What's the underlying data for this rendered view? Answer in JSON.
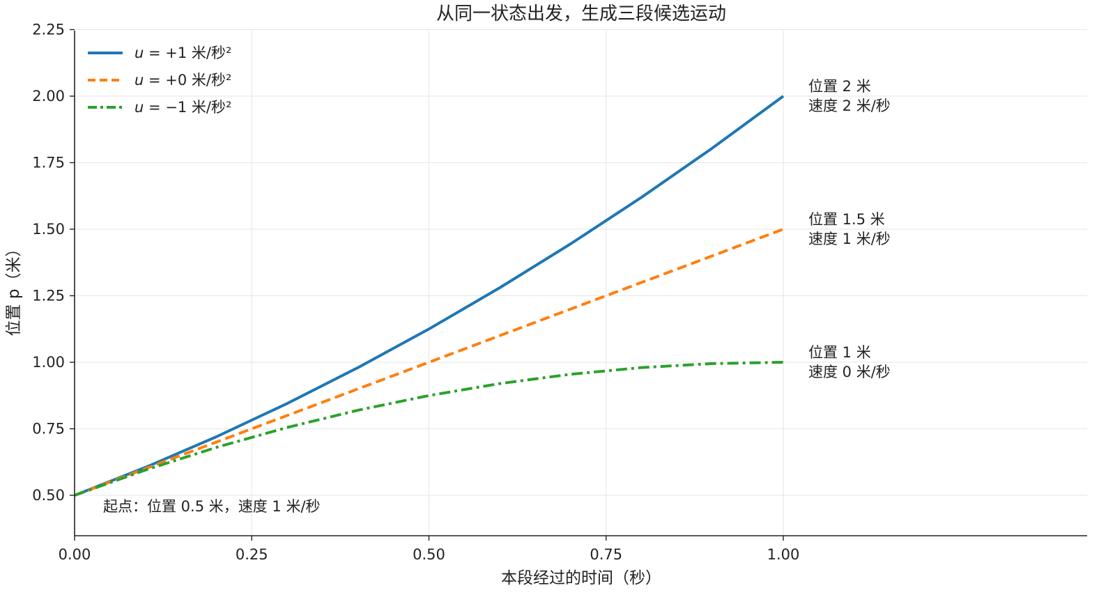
{
  "chart_data": {
    "type": "line",
    "title": "从同一状态出发，生成三段候选运动",
    "xlabel": "本段经过的时间（秒）",
    "ylabel": "位置 p（米）",
    "xlim": [
      0,
      1.43
    ],
    "ylim": [
      0.35,
      2.25
    ],
    "x_ticks": [
      "0.00",
      "0.25",
      "0.50",
      "0.75",
      "1.00"
    ],
    "x_tick_values": [
      0,
      0.25,
      0.5,
      0.75,
      1.0
    ],
    "y_ticks": [
      "0.50",
      "0.75",
      "1.00",
      "1.25",
      "1.50",
      "1.75",
      "2.00",
      "2.25"
    ],
    "y_tick_values": [
      0.5,
      0.75,
      1.0,
      1.25,
      1.5,
      1.75,
      2.0,
      2.25
    ],
    "grid": true,
    "legend_position": "top-left",
    "x": [
      0,
      0.1,
      0.2,
      0.3,
      0.4,
      0.5,
      0.6,
      0.7,
      0.8,
      0.9,
      1.0
    ],
    "series": [
      {
        "legend_symbol": "u",
        "legend_rest": " = +1 米/秒²",
        "color": "#1f77b4",
        "style": "solid",
        "values": [
          0.5,
          0.605,
          0.72,
          0.845,
          0.98,
          1.125,
          1.28,
          1.445,
          1.62,
          1.805,
          2.0
        ]
      },
      {
        "legend_symbol": "u",
        "legend_rest": " = +0 米/秒²",
        "color": "#ff7f0e",
        "style": "dashed",
        "values": [
          0.5,
          0.6,
          0.7,
          0.8,
          0.9,
          1.0,
          1.1,
          1.2,
          1.3,
          1.4,
          1.5
        ]
      },
      {
        "legend_symbol": "u",
        "legend_rest": " = −1 米/秒²",
        "color": "#2ca02c",
        "style": "dashdot",
        "values": [
          0.5,
          0.595,
          0.68,
          0.755,
          0.82,
          0.875,
          0.92,
          0.955,
          0.98,
          0.995,
          1.0
        ]
      }
    ],
    "end_annotations": [
      {
        "y": 2.0,
        "line1": "位置 2 米",
        "line2": "速度 2 米/秒"
      },
      {
        "y": 1.5,
        "line1": "位置 1.5 米",
        "line2": "速度 1 米/秒"
      },
      {
        "y": 1.0,
        "line1": "位置 1 米",
        "line2": "速度 0 米/秒"
      }
    ],
    "start_annotation": "起点：位置 0.5 米，速度 1 米/秒"
  }
}
